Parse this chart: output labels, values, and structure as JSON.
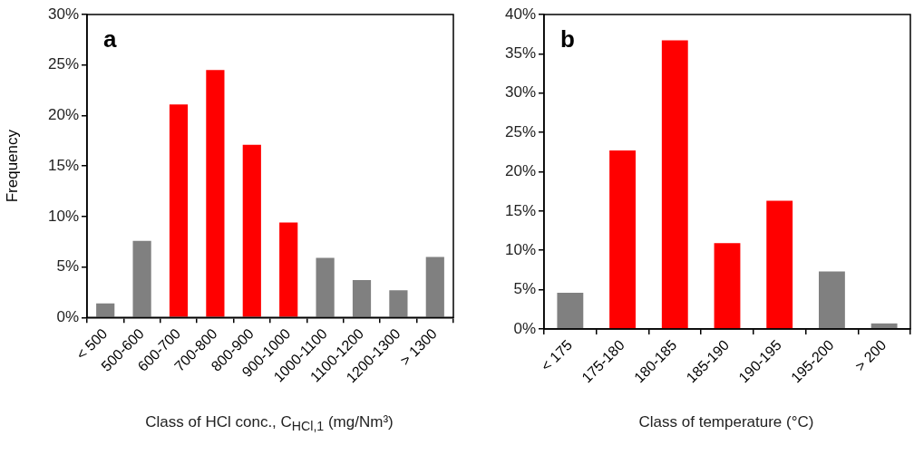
{
  "chart_data": [
    {
      "type": "bar",
      "annotations": [
        "a"
      ],
      "xlabel": "Class of HCl conc., C$_{HCl,1}$ (mg/Nm³)",
      "ylabel": "Frequency",
      "categories": [
        "< 500",
        "500-600",
        "600-700",
        "700-800",
        "800-900",
        "900-1000",
        "1000-1100",
        "1100-1200",
        "1200-1300",
        "> 1300"
      ],
      "values": [
        1.4,
        7.6,
        21.1,
        24.5,
        17.1,
        9.4,
        5.9,
        3.7,
        2.7,
        6.0
      ],
      "colors": [
        "#808080",
        "#808080",
        "#ff0000",
        "#ff0000",
        "#ff0000",
        "#ff0000",
        "#808080",
        "#808080",
        "#808080",
        "#808080"
      ],
      "ylim": [
        0,
        30
      ],
      "yticks": [
        {
          "value": 0,
          "label": "0%"
        },
        {
          "value": 5,
          "label": "5%"
        },
        {
          "value": 10,
          "label": "10%"
        },
        {
          "value": 15,
          "label": "15%"
        },
        {
          "value": 20,
          "label": "20%"
        },
        {
          "value": 25,
          "label": "25%"
        },
        {
          "value": 30,
          "label": "30%"
        }
      ],
      "grid": false,
      "legend": false
    },
    {
      "type": "bar",
      "annotations": [
        "b"
      ],
      "xlabel": "Class of temperature (°C)",
      "categories": [
        "< 175",
        "175-180",
        "180-185",
        "185-190",
        "190-195",
        "195-200",
        "> 200"
      ],
      "values": [
        4.6,
        22.7,
        36.7,
        10.9,
        16.3,
        7.3,
        0.7
      ],
      "colors": [
        "#808080",
        "#ff0000",
        "#ff0000",
        "#ff0000",
        "#ff0000",
        "#808080",
        "#808080"
      ],
      "ylim": [
        0,
        40
      ],
      "yticks": [
        {
          "value": 0,
          "label": "0%"
        },
        {
          "value": 5,
          "label": "5%"
        },
        {
          "value": 10,
          "label": "10%"
        },
        {
          "value": 15,
          "label": "15%"
        },
        {
          "value": 20,
          "label": "20%"
        },
        {
          "value": 25,
          "label": "25%"
        },
        {
          "value": 30,
          "label": "30%"
        },
        {
          "value": 35,
          "label": "35%"
        },
        {
          "value": 40,
          "label": "40%"
        }
      ],
      "grid": false,
      "legend": false
    }
  ]
}
